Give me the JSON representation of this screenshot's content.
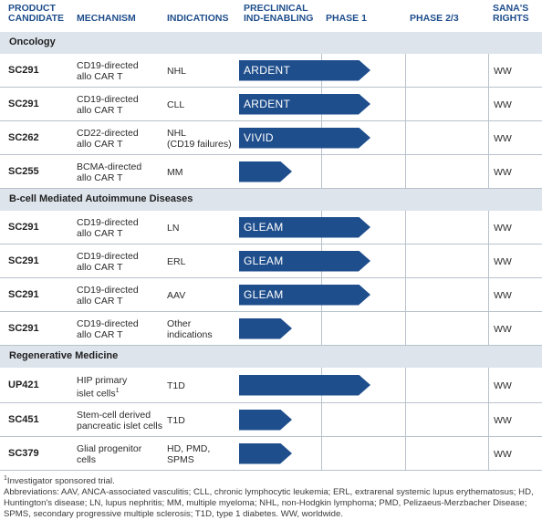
{
  "headers": {
    "candidate": "PRODUCT\nCANDIDATE",
    "mechanism": "MECHANISM",
    "indications": "INDICATIONS",
    "preclinical": "PRECLINICAL\nIND-ENABLING",
    "phase1": "PHASE 1",
    "phase23": "PHASE 2/3",
    "rights": "SANA'S\nRIGHTS"
  },
  "sections": [
    {
      "label": "Oncology",
      "rows": [
        {
          "candidate": "SC291",
          "mechanism": "CD19-directed\nallo CAR T",
          "indication": "NHL",
          "program": "ARDENT",
          "progress": "phase1",
          "rights": "WW"
        },
        {
          "candidate": "SC291",
          "mechanism": "CD19-directed\nallo CAR T",
          "indication": "CLL",
          "program": "ARDENT",
          "progress": "phase1",
          "rights": "WW"
        },
        {
          "candidate": "SC262",
          "mechanism": "CD22-directed\nallo CAR T",
          "indication": "NHL\n(CD19 failures)",
          "program": "VIVID",
          "progress": "phase1",
          "rights": "WW"
        },
        {
          "candidate": "SC255",
          "mechanism": "BCMA-directed\nallo CAR T",
          "indication": "MM",
          "program": "",
          "progress": "preclinical",
          "rights": "WW"
        }
      ]
    },
    {
      "label": "B-cell Mediated Autoimmune Diseases",
      "rows": [
        {
          "candidate": "SC291",
          "mechanism": "CD19-directed\nallo CAR T",
          "indication": "LN",
          "program": "GLEAM",
          "progress": "phase1",
          "rights": "WW"
        },
        {
          "candidate": "SC291",
          "mechanism": "CD19-directed\nallo CAR T",
          "indication": "ERL",
          "program": "GLEAM",
          "progress": "phase1",
          "rights": "WW"
        },
        {
          "candidate": "SC291",
          "mechanism": "CD19-directed\nallo CAR T",
          "indication": "AAV",
          "program": "GLEAM",
          "progress": "phase1",
          "rights": "WW"
        },
        {
          "candidate": "SC291",
          "mechanism": "CD19-directed\nallo CAR T",
          "indication": "Other\nindications",
          "program": "",
          "progress": "preclinical",
          "rights": "WW"
        }
      ]
    },
    {
      "label": "Regenerative Medicine",
      "rows": [
        {
          "candidate": "UP421",
          "mechanism": "HIP primary\nislet cells",
          "mechanism_sup": "1",
          "indication": "T1D",
          "program": "",
          "progress": "phase1",
          "rights": "WW"
        },
        {
          "candidate": "SC451",
          "mechanism": "Stem-cell derived\npancreatic islet cells",
          "indication": "T1D",
          "program": "",
          "progress": "preclinical",
          "rights": "WW"
        },
        {
          "candidate": "SC379",
          "mechanism": "Glial progenitor\ncells",
          "indication": "HD, PMD,\nSPMS",
          "program": "",
          "progress": "preclinical",
          "rights": "WW"
        }
      ]
    }
  ],
  "footnote": "Investigator sponsored trial.",
  "footnote_mark": "1",
  "abbreviations": "Abbreviations: AAV, ANCA-associated vasculitis; CLL, chronic lymphocytic leukemia; ERL, extrarenal systemic lupus erythematosus; HD, Huntington's disease; LN, lupus nephritis; MM, multiple myeloma; NHL, non-Hodgkin lymphoma; PMD, Pelizaeus-Merzbacher Disease; SPMS, secondary progressive multiple sclerosis; T1D, type 1 diabetes. WW, worldwide."
}
